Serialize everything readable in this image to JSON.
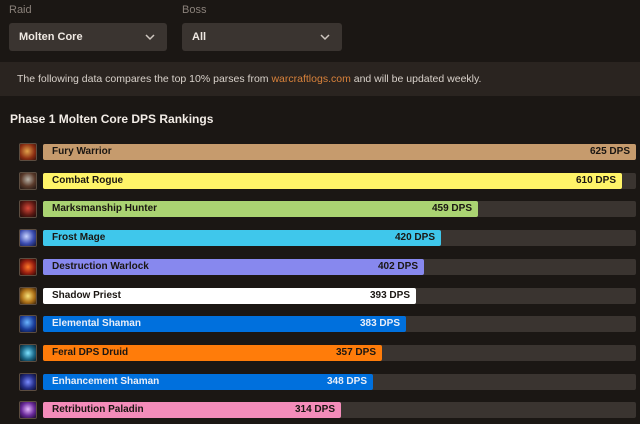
{
  "filters": {
    "raid": {
      "label": "Raid",
      "value": "Molten Core"
    },
    "boss": {
      "label": "Boss",
      "value": "All"
    }
  },
  "info": {
    "text_before": "The following data compares the top 10% parses from ",
    "link": "warcraftlogs.com",
    "text_after": " and will be updated weekly."
  },
  "heading": "Phase 1 Molten Core DPS Rankings",
  "rankings": {
    "unit": "DPS",
    "max_value": 625,
    "rows": [
      {
        "name": "Fury Warrior",
        "dps": 625,
        "dps_label": "625 DPS",
        "color": "#c69b6d",
        "icon": "fury-warrior-icon",
        "text": "dark"
      },
      {
        "name": "Combat Rogue",
        "dps": 610,
        "dps_label": "610 DPS",
        "color": "#fff468",
        "icon": "combat-rogue-icon",
        "text": "dark"
      },
      {
        "name": "Marksmanship Hunter",
        "dps": 459,
        "dps_label": "459 DPS",
        "color": "#aad372",
        "icon": "marksmanship-hunter-icon",
        "text": "dark"
      },
      {
        "name": "Frost Mage",
        "dps": 420,
        "dps_label": "420 DPS",
        "color": "#3fc7eb",
        "icon": "frost-mage-icon",
        "text": "dark"
      },
      {
        "name": "Destruction Warlock",
        "dps": 402,
        "dps_label": "402 DPS",
        "color": "#8788ee",
        "icon": "destruction-warlock-icon",
        "text": "dark"
      },
      {
        "name": "Shadow Priest",
        "dps": 393,
        "dps_label": "393 DPS",
        "color": "#ffffff",
        "icon": "shadow-priest-icon",
        "text": "dark"
      },
      {
        "name": "Elemental Shaman",
        "dps": 383,
        "dps_label": "383 DPS",
        "color": "#0070dd",
        "icon": "elemental-shaman-icon",
        "text": "light"
      },
      {
        "name": "Feral DPS Druid",
        "dps": 357,
        "dps_label": "357 DPS",
        "color": "#ff7c0a",
        "icon": "feral-dps-druid-icon",
        "text": "dark"
      },
      {
        "name": "Enhancement Shaman",
        "dps": 348,
        "dps_label": "348 DPS",
        "color": "#0070dd",
        "icon": "enhancement-shaman-icon",
        "text": "light"
      },
      {
        "name": "Retribution Paladin",
        "dps": 314,
        "dps_label": "314 DPS",
        "color": "#f48cba",
        "icon": "retribution-paladin-icon",
        "text": "dark"
      }
    ]
  }
}
